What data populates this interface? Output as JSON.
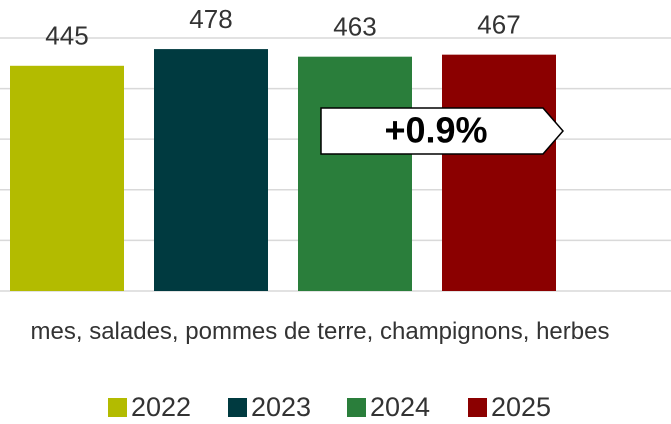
{
  "chart_data": {
    "type": "bar",
    "categories": [
      "mes, salades, pommes de terre, champignons, herbes"
    ],
    "series": [
      {
        "name": "2022",
        "color": "#b3bb00",
        "values": [
          445
        ]
      },
      {
        "name": "2023",
        "color": "#003a40",
        "values": [
          478
        ]
      },
      {
        "name": "2024",
        "color": "#2a7e3b",
        "values": [
          463
        ]
      },
      {
        "name": "2025",
        "color": "#8b0000",
        "values": [
          467
        ]
      }
    ],
    "annotation": "+0.9%",
    "ylim": [
      0,
      575
    ],
    "yticks": [
      0,
      100,
      200,
      300,
      400,
      500
    ],
    "grid": true,
    "legend": "bottom"
  }
}
